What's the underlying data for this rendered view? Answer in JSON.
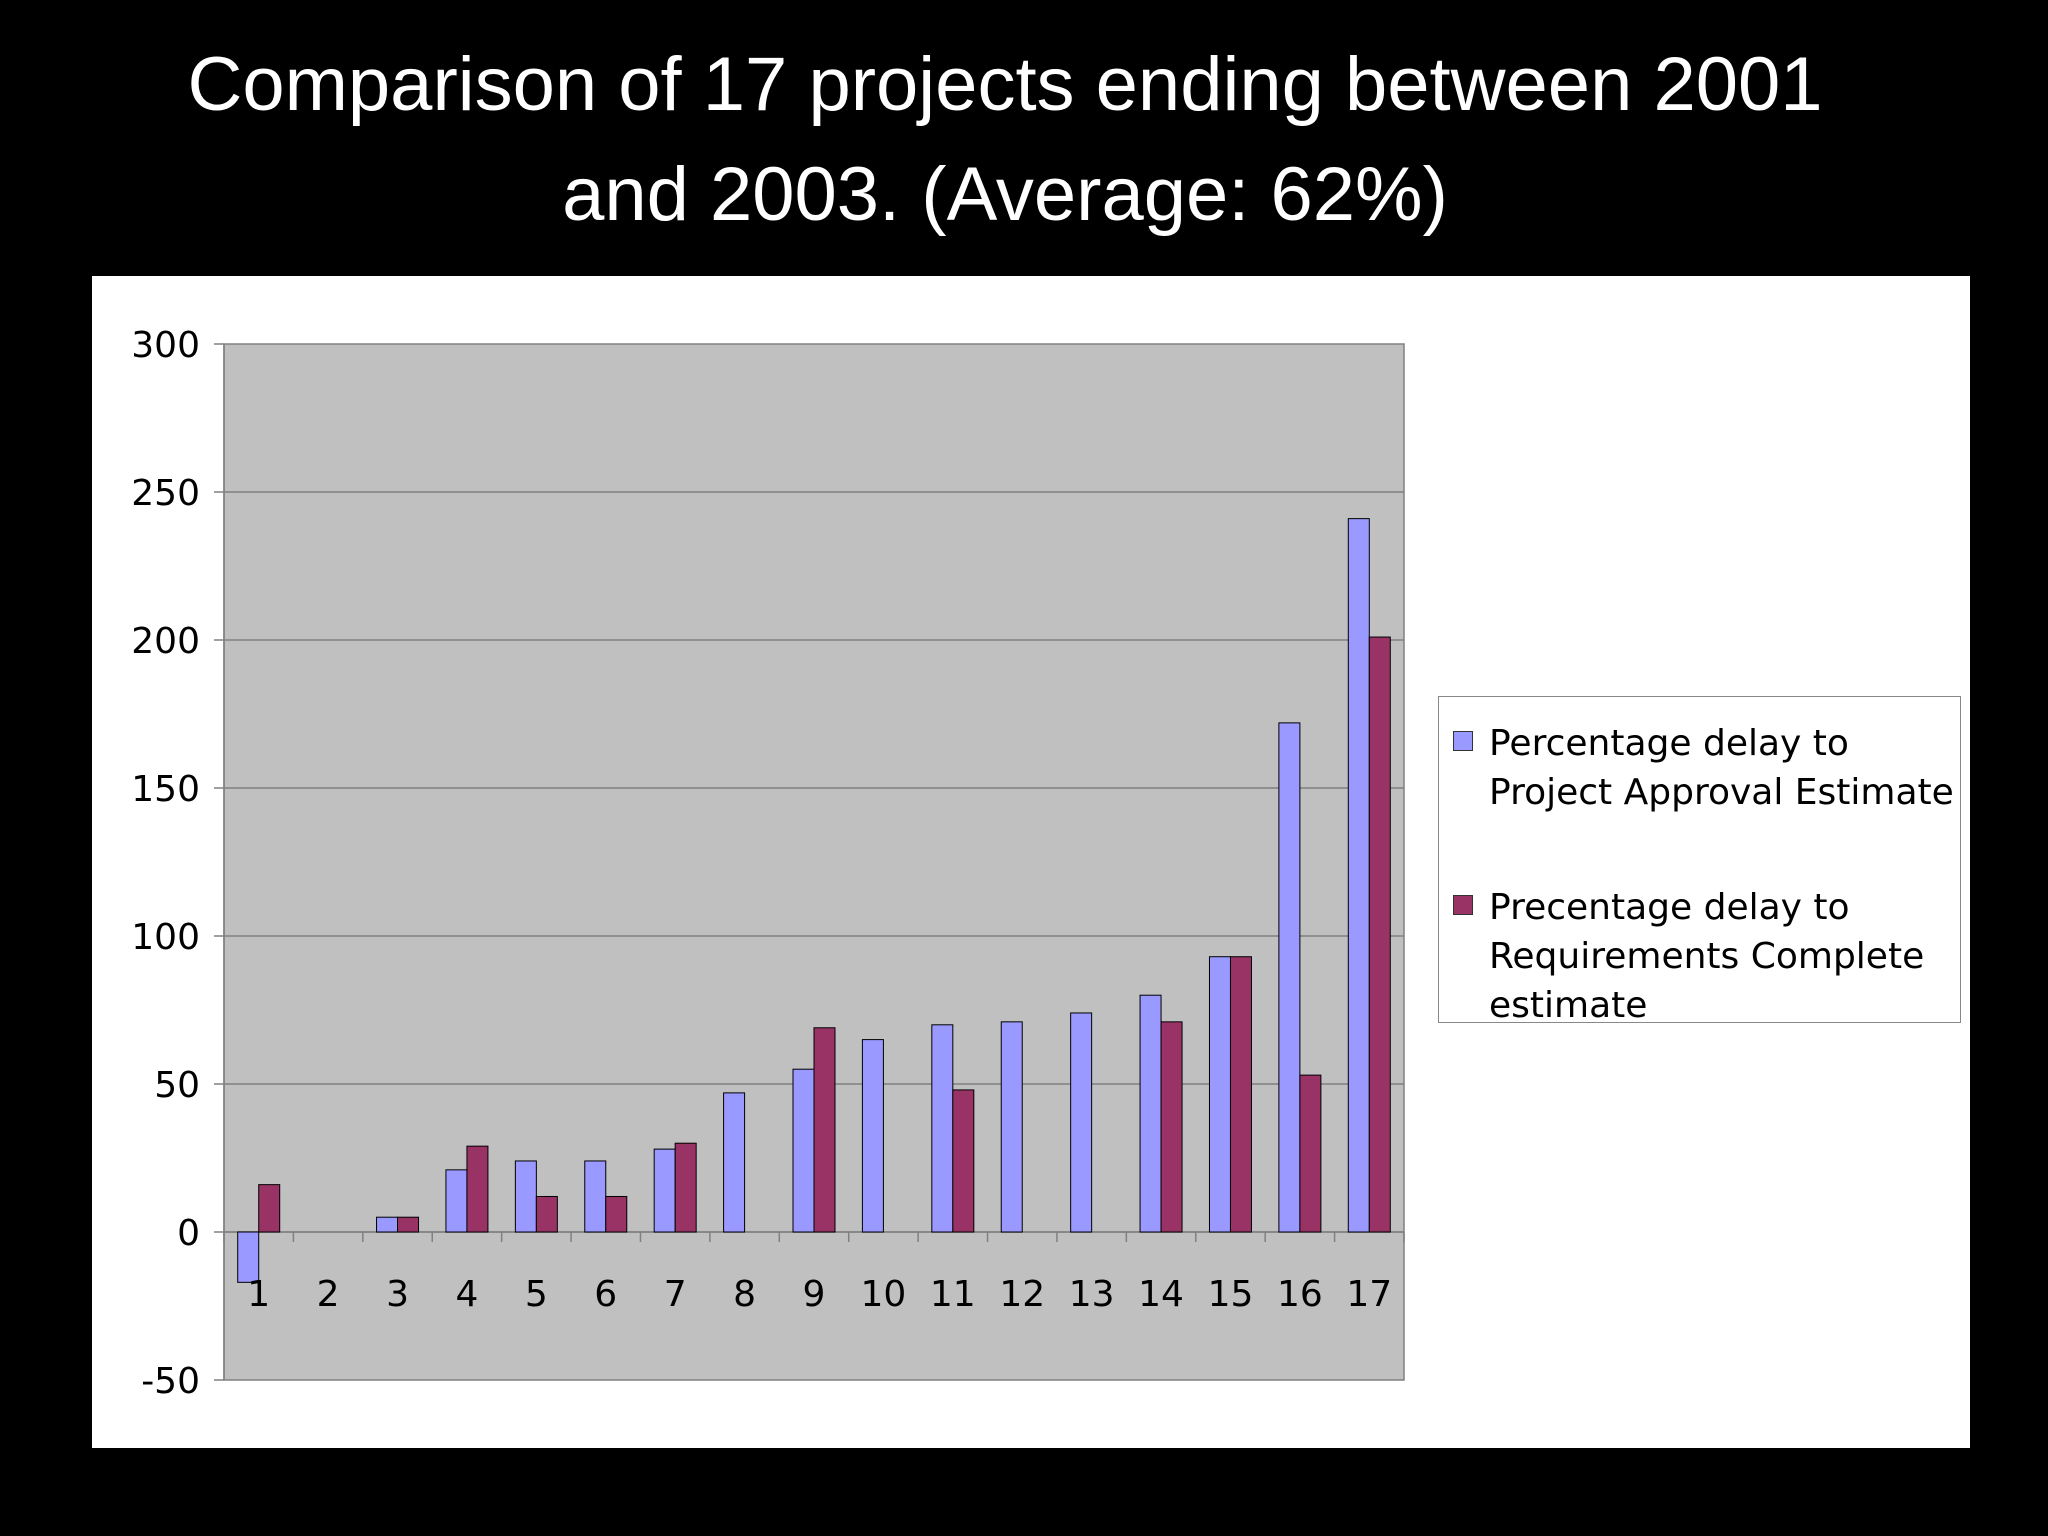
{
  "slide": {
    "title_line1": "Comparison of 17 projects ending between 2001",
    "title_line2": "and 2003. (Average: 62%)"
  },
  "chart_data": {
    "type": "bar",
    "categories": [
      "1",
      "2",
      "3",
      "4",
      "5",
      "6",
      "7",
      "8",
      "9",
      "10",
      "11",
      "12",
      "13",
      "14",
      "15",
      "16",
      "17"
    ],
    "series": [
      {
        "name": "Percentage delay to Project Approval Estimate",
        "color": "#9999ff",
        "values": [
          -17,
          0,
          5,
          21,
          24,
          24,
          28,
          47,
          55,
          65,
          70,
          71,
          74,
          80,
          93,
          172,
          241
        ]
      },
      {
        "name": "Precentage delay to Requirements Complete estimate",
        "color": "#993366",
        "values": [
          16,
          0,
          5,
          29,
          12,
          12,
          30,
          0,
          69,
          0,
          48,
          0,
          0,
          71,
          93,
          53,
          201
        ]
      }
    ],
    "ylim": [
      -50,
      300
    ],
    "yticks": [
      "300",
      "250",
      "200",
      "150",
      "100",
      "50",
      "0",
      "-50"
    ],
    "plot_background": "#c0c0c0",
    "grid": true,
    "legend_position": "right"
  }
}
